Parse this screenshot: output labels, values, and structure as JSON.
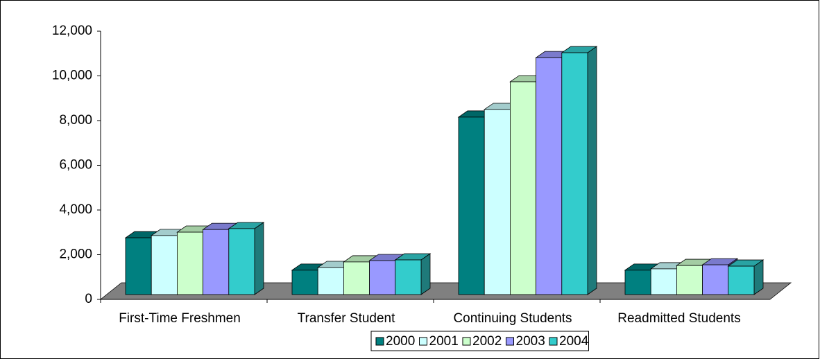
{
  "chart_data": {
    "type": "bar3d",
    "categories": [
      "First-Time Freshmen",
      "Transfer Student",
      "Continuing Students",
      "Readmitted Students"
    ],
    "series": [
      {
        "name": "2000",
        "color": "#008080",
        "values": [
          2540,
          1090,
          7940,
          1090
        ]
      },
      {
        "name": "2001",
        "color": "#ccffff",
        "values": [
          2640,
          1210,
          8280,
          1150
        ]
      },
      {
        "name": "2002",
        "color": "#ccffcc",
        "values": [
          2790,
          1460,
          9520,
          1300
        ]
      },
      {
        "name": "2003",
        "color": "#9999ff",
        "values": [
          2910,
          1520,
          10600,
          1330
        ]
      },
      {
        "name": "2004",
        "color": "#33cccc",
        "values": [
          2950,
          1550,
          10820,
          1270
        ]
      }
    ],
    "ylim": [
      0,
      12000
    ],
    "yticks": [
      0,
      {
        "value": 2000,
        "label": "2,000"
      },
      {
        "value": 4000,
        "label": "4,000"
      },
      {
        "value": 6000,
        "label": "6,000"
      },
      {
        "value": 8000,
        "label": "8,000"
      },
      {
        "value": 10000,
        "label": "10,000"
      },
      {
        "value": 12000,
        "label": "12,000"
      }
    ],
    "legend": "bottom"
  }
}
